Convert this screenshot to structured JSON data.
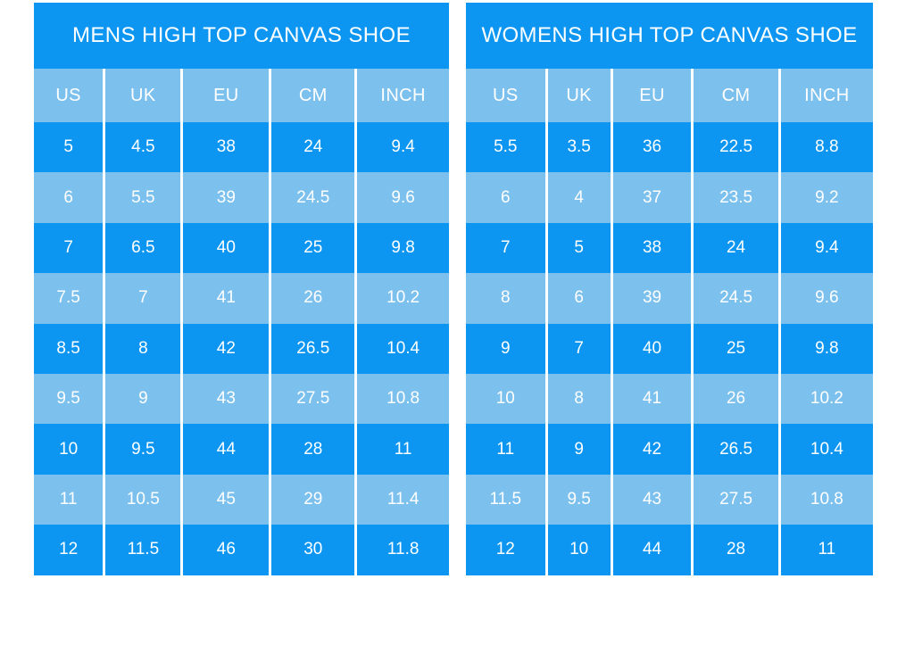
{
  "chart_data": [
    {
      "type": "table",
      "title": "MENS HIGH TOP CANVAS SHOE",
      "columns": [
        "US",
        "UK",
        "EU",
        "CM",
        "INCH"
      ],
      "rows": [
        [
          "5",
          "4.5",
          "38",
          "24",
          "9.4"
        ],
        [
          "6",
          "5.5",
          "39",
          "24.5",
          "9.6"
        ],
        [
          "7",
          "6.5",
          "40",
          "25",
          "9.8"
        ],
        [
          "7.5",
          "7",
          "41",
          "26",
          "10.2"
        ],
        [
          "8.5",
          "8",
          "42",
          "26.5",
          "10.4"
        ],
        [
          "9.5",
          "9",
          "43",
          "27.5",
          "10.8"
        ],
        [
          "10",
          "9.5",
          "44",
          "28",
          "11"
        ],
        [
          "11",
          "10.5",
          "45",
          "29",
          "11.4"
        ],
        [
          "12",
          "11.5",
          "46",
          "30",
          "11.8"
        ]
      ]
    },
    {
      "type": "table",
      "title": "WOMENS HIGH TOP CANVAS SHOE",
      "columns": [
        "US",
        "UK",
        "EU",
        "CM",
        "INCH"
      ],
      "rows": [
        [
          "5.5",
          "3.5",
          "36",
          "22.5",
          "8.8"
        ],
        [
          "6",
          "4",
          "37",
          "23.5",
          "9.2"
        ],
        [
          "7",
          "5",
          "38",
          "24",
          "9.4"
        ],
        [
          "8",
          "6",
          "39",
          "24.5",
          "9.6"
        ],
        [
          "9",
          "7",
          "40",
          "25",
          "9.8"
        ],
        [
          "10",
          "8",
          "41",
          "26",
          "10.2"
        ],
        [
          "11",
          "9",
          "42",
          "26.5",
          "10.4"
        ],
        [
          "11.5",
          "9.5",
          "43",
          "27.5",
          "10.8"
        ],
        [
          "12",
          "10",
          "44",
          "28",
          "11"
        ]
      ]
    }
  ],
  "colors": {
    "row_bright": "#0c96f2",
    "row_light": "#7cc0ee",
    "title_bg": "#0c96f2",
    "header_bg": "#7cc0ee",
    "text": "#ffffff",
    "background": "#ffffff",
    "separator": "#ffffff"
  }
}
